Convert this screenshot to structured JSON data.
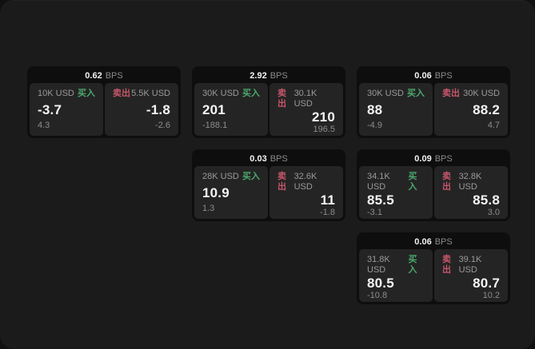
{
  "labels": {
    "buy": "买入",
    "sell": "卖出",
    "bps": "BPS"
  },
  "colors": {
    "buy_green": "#4ca86f",
    "sell_red": "#c5566a",
    "surface_bg": "#1b1b1b",
    "card_bg": "#0e0e0e",
    "tile_bg": "#242424"
  },
  "cards": [
    {
      "row": 1,
      "col": 1,
      "bps": "0.62",
      "buy": {
        "amount": "10K USD",
        "price": "-3.7",
        "delta": "4.3"
      },
      "sell": {
        "amount": "5.5K USD",
        "price": "-1.8",
        "delta": "-2.6"
      }
    },
    {
      "row": 1,
      "col": 2,
      "bps": "2.92",
      "buy": {
        "amount": "30K USD",
        "price": "201",
        "delta": "-188.1"
      },
      "sell": {
        "amount": "30.1K USD",
        "price": "210",
        "delta": "196.5"
      }
    },
    {
      "row": 1,
      "col": 3,
      "bps": "0.06",
      "buy": {
        "amount": "30K USD",
        "price": "88",
        "delta": "-4.9"
      },
      "sell": {
        "amount": "30K USD",
        "price": "88.2",
        "delta": "4.7"
      }
    },
    {
      "row": 2,
      "col": 2,
      "bps": "0.03",
      "buy": {
        "amount": "28K USD",
        "price": "10.9",
        "delta": "1.3"
      },
      "sell": {
        "amount": "32.6K USD",
        "price": "11",
        "delta": "-1.8"
      }
    },
    {
      "row": 2,
      "col": 3,
      "bps": "0.09",
      "buy": {
        "amount": "34.1K USD",
        "price": "85.5",
        "delta": "-3.1"
      },
      "sell": {
        "amount": "32.8K USD",
        "price": "85.8",
        "delta": "3.0"
      }
    },
    {
      "row": 3,
      "col": 3,
      "bps": "0.06",
      "buy": {
        "amount": "31.8K USD",
        "price": "80.5",
        "delta": "-10.8"
      },
      "sell": {
        "amount": "39.1K USD",
        "price": "80.7",
        "delta": "10.2"
      }
    }
  ]
}
